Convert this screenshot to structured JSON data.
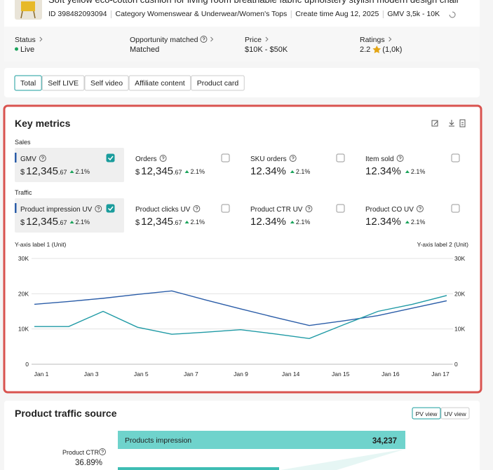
{
  "header": {
    "title": "Soft yellow eco-cotton cushion for living room breathable fabric upholstery stylish modern design chair",
    "meta": [
      "ID 398482093094",
      "Category Womenswear & Underwear/Women's Tops",
      "Create time Aug 12, 2025",
      "GMV 3,5k - 10K"
    ]
  },
  "stats": [
    {
      "label": "Status",
      "value": "Live"
    },
    {
      "label": "Opportunity matched",
      "value": "Matched"
    },
    {
      "label": "Price",
      "value": "$10K - $50K"
    },
    {
      "label": "Ratings",
      "value": "2.2",
      "extra": "(1,0k)"
    }
  ],
  "tabs": [
    "Total",
    "Self LIVE",
    "Self video",
    "Affiliate content",
    "Product card"
  ],
  "key_metrics": {
    "title": "Key metrics",
    "sections": [
      {
        "label": "Sales",
        "metrics": [
          {
            "name": "GMV",
            "currency": "$",
            "amount": "12,345",
            "cents": ".67",
            "change": "2.1%",
            "checked": true
          },
          {
            "name": "Orders",
            "currency": "$",
            "amount": "12,345",
            "cents": ".67",
            "change": "2.1%",
            "checked": false
          },
          {
            "name": "SKU orders",
            "amount": "12.34%",
            "change": "2.1%",
            "checked": false
          },
          {
            "name": "Item sold",
            "amount": "12.34%",
            "change": "2.1%",
            "checked": false
          }
        ]
      },
      {
        "label": "Traffic",
        "metrics": [
          {
            "name": "Product impression UV",
            "currency": "$",
            "amount": "12,345",
            "cents": ".67",
            "change": "2.1%",
            "checked": true
          },
          {
            "name": "Product clicks UV",
            "currency": "$",
            "amount": "12,345",
            "cents": ".67",
            "change": "2.1%",
            "checked": false
          },
          {
            "name": "Product CTR UV",
            "amount": "12.34%",
            "change": "2.1%",
            "checked": false
          },
          {
            "name": "Product CO UV",
            "amount": "12.34%",
            "change": "2.1%",
            "checked": false
          }
        ]
      }
    ]
  },
  "chart_data": {
    "type": "line",
    "y_label": "Y-axis label 1 (Unit)",
    "y2_label": "Y-axis label 2 (Unit)",
    "x_labels": [
      "Jan 1",
      "Jan 3",
      "Jan 5",
      "Jan 7",
      "Jan 9",
      "Jan 14",
      "Jan 15",
      "Jan 16",
      "Jan 17"
    ],
    "ylim": [
      0,
      30000
    ],
    "yticks": [
      0,
      {
        "value": 10000,
        "label": "10K"
      },
      {
        "value": 20000,
        "label": "20K"
      },
      {
        "value": 30000,
        "label": "30K"
      }
    ],
    "y2lim": [
      0,
      30000
    ],
    "y2ticks": [
      0,
      {
        "value": 10000,
        "label": "10K"
      },
      {
        "value": 20000,
        "label": "20K"
      },
      {
        "value": 30000,
        "label": "30K"
      }
    ],
    "grid": true,
    "series": [
      {
        "color": "#2b5da8",
        "values": [
          17000,
          17800,
          18700,
          19800,
          20800,
          18200,
          15700,
          13300,
          11000,
          12300,
          13800,
          15900,
          18000
        ]
      },
      {
        "color": "#1f9aa5",
        "axis": "y2",
        "values": [
          10700,
          10700,
          15000,
          10500,
          8500,
          9100,
          9800,
          8600,
          7300,
          11200,
          15000,
          17000,
          19500
        ]
      }
    ]
  },
  "traffic": {
    "title": "Product traffic source",
    "views": [
      "PV view",
      "UV view"
    ],
    "stage": "Products impression",
    "stage_value": "34,237",
    "rate_label": "Product CTR",
    "rate_value": "36.89%"
  }
}
